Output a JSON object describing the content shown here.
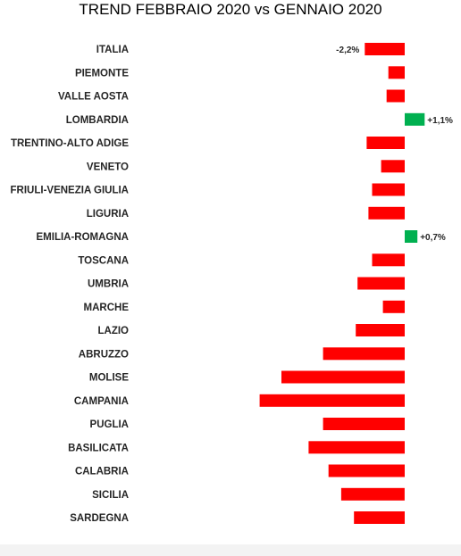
{
  "chart_data": {
    "type": "bar",
    "orientation": "horizontal",
    "title": "TREND FEBBRAIO 2020 vs GENNAIO 2020",
    "xlabel": "",
    "ylabel": "",
    "xlim": [
      -8.2,
      2.2
    ],
    "grid": false,
    "legend": "none",
    "categories": [
      "ITALIA",
      "PIEMONTE",
      "VALLE AOSTA",
      "LOMBARDIA",
      "TRENTINO-ALTO ADIGE",
      "VENETO",
      "FRIULI-VENEZIA GIULIA",
      "LIGURIA",
      "EMILIA-ROMAGNA",
      "TOSCANA",
      "UMBRIA",
      "MARCHE",
      "LAZIO",
      "ABRUZZO",
      "MOLISE",
      "CAMPANIA",
      "PUGLIA",
      "BASILICATA",
      "CALABRIA",
      "SICILIA",
      "SARDEGNA"
    ],
    "values": [
      -2.2,
      -0.9,
      -1.0,
      1.1,
      -2.1,
      -1.3,
      -1.8,
      -2.0,
      0.7,
      -1.8,
      -2.6,
      -1.2,
      -2.7,
      -4.5,
      -6.8,
      -8.0,
      -4.5,
      -5.3,
      -4.2,
      -3.5,
      -2.8
    ],
    "data_labels": [
      "-2,2%",
      "",
      "",
      "+1,1%",
      "",
      "",
      "",
      "",
      "+0,7%",
      "",
      "",
      "",
      "",
      "",
      "",
      "",
      "",
      "",
      "",
      "",
      ""
    ],
    "colors": {
      "negative": "#ff0000",
      "positive": "#00b050"
    }
  }
}
